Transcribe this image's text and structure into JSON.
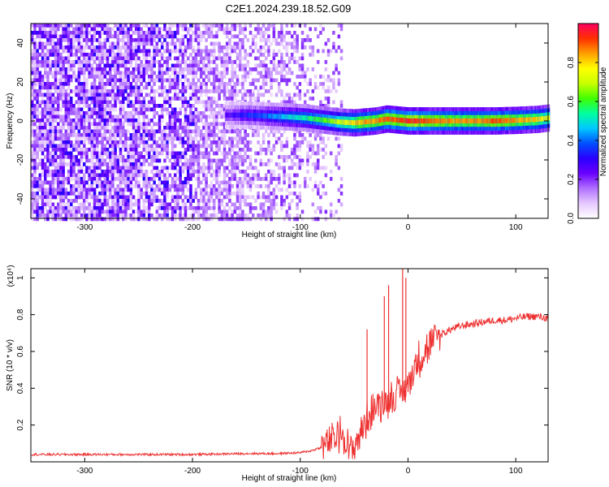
{
  "figure_title": "C2E1.2024.239.18.52.G09",
  "chart_data": [
    {
      "type": "heatmap",
      "xlabel": "Height of straight line (km)",
      "ylabel": "Frequency (Hz)",
      "xlim": [
        -350,
        130
      ],
      "ylim": [
        -50,
        50
      ],
      "xticks": [
        -300,
        -200,
        -100,
        0,
        100
      ],
      "yticks": [
        -40,
        -20,
        0,
        20,
        40
      ],
      "colorbar": {
        "label": "Normalized spectral amplitude",
        "range": [
          0,
          1
        ],
        "ticks": [
          0.0,
          0.2,
          0.4,
          0.6,
          0.8
        ],
        "colors": [
          "#ffffff",
          "#e6c8ff",
          "#b070ff",
          "#6a00ff",
          "#2a00ff",
          "#0050ff",
          "#00c8ff",
          "#00ffa0",
          "#40ff00",
          "#c8ff00",
          "#ffff00",
          "#ffa000",
          "#ff3000",
          "#ff0060"
        ]
      },
      "signal_track": {
        "x": [
          -170,
          -150,
          -130,
          -110,
          -95,
          -80,
          -65,
          -50,
          -40,
          -30,
          -20,
          -10,
          0,
          20,
          40,
          60,
          80,
          100,
          120,
          130
        ],
        "frequency": [
          3,
          3,
          2.5,
          2,
          1.5,
          0.5,
          -0.5,
          -1,
          -0.5,
          0,
          1,
          0.5,
          0,
          0,
          0,
          0,
          0,
          0.3,
          0.8,
          1.5
        ],
        "amplitude": [
          0.25,
          0.35,
          0.4,
          0.5,
          0.55,
          0.6,
          0.7,
          0.8,
          0.85,
          0.85,
          0.9,
          0.9,
          0.95,
          0.9,
          0.85,
          0.85,
          0.9,
          0.85,
          0.8,
          0.75
        ]
      }
    },
    {
      "type": "line",
      "xlabel": "Height of straight line (km)",
      "ylabel": "SNR (10 * v/v)",
      "y_multiplier": "(x10⁴)",
      "xlim": [
        -350,
        130
      ],
      "ylim": [
        0,
        1.05
      ],
      "xticks": [
        -300,
        -200,
        -100,
        0,
        100
      ],
      "yticks": [
        0.2,
        0.4,
        0.6,
        0.8,
        1.0
      ],
      "line_color": "#ee3030",
      "series": [
        {
          "x": [
            -350,
            -300,
            -250,
            -200,
            -150,
            -120,
            -100,
            -90,
            -80,
            -70,
            -60,
            -55,
            -50,
            -45,
            -40,
            -35,
            -30,
            -25,
            -20,
            -15,
            -10,
            -5,
            0,
            5,
            10,
            15,
            20,
            25,
            30,
            40,
            50,
            60,
            70,
            80,
            90,
            100,
            110,
            120,
            130
          ],
          "y": [
            0.04,
            0.04,
            0.04,
            0.04,
            0.045,
            0.045,
            0.05,
            0.06,
            0.08,
            0.12,
            0.16,
            0.06,
            0.08,
            0.15,
            0.2,
            0.27,
            0.3,
            0.32,
            0.33,
            0.35,
            0.36,
            0.38,
            0.42,
            0.5,
            0.56,
            0.6,
            0.63,
            0.66,
            0.69,
            0.72,
            0.74,
            0.75,
            0.76,
            0.77,
            0.77,
            0.78,
            0.79,
            0.79,
            0.78
          ]
        }
      ],
      "spikes": [
        {
          "x": -38,
          "y": 0.72
        },
        {
          "x": -22,
          "y": 0.9
        },
        {
          "x": -18,
          "y": 0.96
        },
        {
          "x": -5,
          "y": 1.05
        },
        {
          "x": -2,
          "y": 1.0
        }
      ]
    }
  ]
}
